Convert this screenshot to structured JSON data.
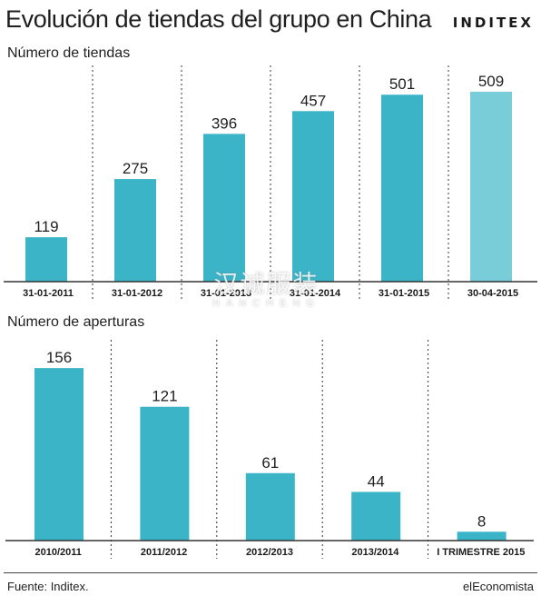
{
  "header": {
    "title": "Evolución de tiendas del grupo en China",
    "brand": "INDITEX"
  },
  "footer": {
    "source": "Fuente: Inditex.",
    "credit": "elEconomista"
  },
  "watermark": {
    "main": "汉诚服装",
    "sub": "HANCHENG"
  },
  "colors": {
    "bar": "#3bb4c8",
    "bar_highlight": "#78cdd9",
    "axis": "#333333",
    "divider": "#333333"
  },
  "chart_data": [
    {
      "type": "bar",
      "title": "Número de tiendas",
      "categories": [
        "31-01-2011",
        "31-01-2012",
        "31-01-2013",
        "31-01-2014",
        "31-01-2015",
        "30-04-2015"
      ],
      "values": [
        119,
        275,
        396,
        457,
        501,
        509
      ],
      "highlight_index": 5,
      "ylim": [
        0,
        560
      ],
      "grid": false
    },
    {
      "type": "bar",
      "title": "Número de aperturas",
      "categories": [
        "2010/2011",
        "2011/2012",
        "2012/2013",
        "2013/2014",
        "I TRIMESTRE 2015"
      ],
      "values": [
        156,
        121,
        61,
        44,
        8
      ],
      "ylim": [
        0,
        175
      ],
      "grid": false
    }
  ]
}
